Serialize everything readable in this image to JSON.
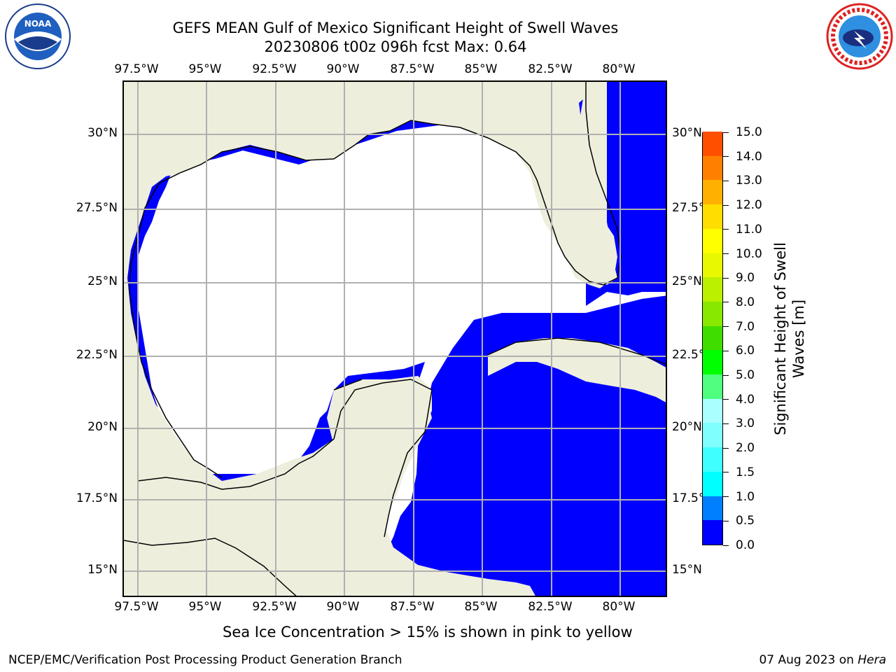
{
  "title": {
    "line1": "GEFS MEAN Gulf of Mexico Significant Height of Swell Waves",
    "line2": "20230806 t00z 096h fcst   Max: 0.64"
  },
  "map": {
    "lon_ticks": [
      "97.5°W",
      "95°W",
      "92.5°W",
      "90°W",
      "87.5°W",
      "85°W",
      "82.5°W",
      "80°W"
    ],
    "lat_ticks": [
      "30°N",
      "27.5°N",
      "25°N",
      "22.5°N",
      "20°N",
      "17.5°N",
      "15°N"
    ],
    "colors": {
      "land": "#eeeedd",
      "water_low": "#0000ff",
      "water_mid": "#0080ff",
      "grid": "#b0b0b0"
    }
  },
  "colorbar": {
    "title": "Significant Height of Swell Waves [m]",
    "labels": [
      "0.0",
      "0.5",
      "1.0",
      "1.5",
      "2.0",
      "3.0",
      "4.0",
      "5.0",
      "6.0",
      "7.0",
      "8.0",
      "9.0",
      "10.0",
      "11.0",
      "12.0",
      "13.0",
      "14.0",
      "15.0"
    ],
    "colors": [
      "#0000ff",
      "#0080ff",
      "#00ffff",
      "#40ffff",
      "#80ffff",
      "#aaffff",
      "#50ff80",
      "#00ff00",
      "#40dd00",
      "#88e800",
      "#bbf000",
      "#e8f800",
      "#ffff00",
      "#ffdd00",
      "#ffb000",
      "#ff8000",
      "#ff5000",
      "#ff2000",
      "#ff0000"
    ]
  },
  "note": "Sea Ice Concentration > 15% is shown in pink to yellow",
  "footer": {
    "left": "NCEP/EMC/Verification Post Processing Product Generation Branch",
    "right_prefix": "07 Aug 2023 on ",
    "right_host": "Hera"
  },
  "logos": {
    "left": "noaa-logo",
    "right": "nws-logo"
  }
}
